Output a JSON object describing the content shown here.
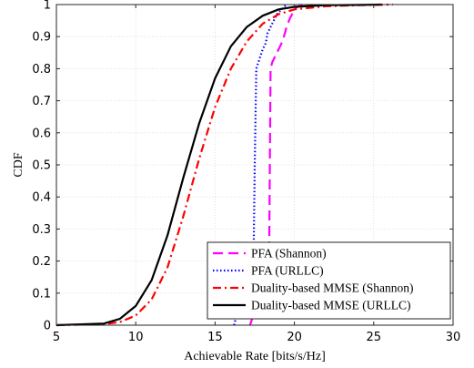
{
  "chart_data": {
    "type": "line",
    "xlabel": "Achievable Rate [bits/s/Hz]",
    "ylabel": "CDF",
    "xlim": [
      5,
      30
    ],
    "ylim": [
      0,
      1
    ],
    "xticks": [
      5,
      10,
      15,
      20,
      25,
      30
    ],
    "yticks": [
      0,
      0.1,
      0.2,
      0.3,
      0.4,
      0.5,
      0.6,
      0.7,
      0.8,
      0.9,
      1
    ],
    "xtick_labels": [
      "5",
      "10",
      "15",
      "20",
      "25",
      "30"
    ],
    "ytick_labels": [
      "0",
      "0.1",
      "0.2",
      "0.3",
      "0.4",
      "0.5",
      "0.6",
      "0.7",
      "0.8",
      "0.9",
      "1"
    ],
    "grid": true,
    "legend_position": "bottom-right",
    "series": [
      {
        "name": "PFA (Shannon)",
        "color": "#ff00ff",
        "style": "dashed",
        "x": [
          17.2,
          17.4,
          17.6,
          17.8,
          18.0,
          18.2,
          18.4,
          18.45,
          18.5,
          18.6,
          18.8,
          19.0,
          19.2,
          19.4,
          19.5,
          19.7,
          19.9,
          20.1,
          20.5
        ],
        "y": [
          0.0,
          0.03,
          0.07,
          0.1,
          0.12,
          0.14,
          0.16,
          0.5,
          0.8,
          0.82,
          0.84,
          0.86,
          0.88,
          0.91,
          0.93,
          0.955,
          0.975,
          0.99,
          1.0
        ]
      },
      {
        "name": "PFA (URLLC)",
        "color": "#0000ff",
        "style": "dotted",
        "x": [
          16.2,
          16.4,
          16.6,
          16.8,
          17.0,
          17.2,
          17.4,
          17.5,
          17.6,
          17.8,
          18.0,
          18.2,
          18.3,
          18.5,
          18.7,
          18.9,
          19.1,
          19.3,
          19.5
        ],
        "y": [
          0.0,
          0.04,
          0.07,
          0.09,
          0.1,
          0.11,
          0.12,
          0.5,
          0.8,
          0.83,
          0.86,
          0.88,
          0.91,
          0.93,
          0.95,
          0.97,
          0.98,
          0.99,
          1.0
        ]
      },
      {
        "name": "Duality-based MMSE (Shannon)",
        "color": "#ff0000",
        "style": "dashdot",
        "x": [
          5,
          8,
          9,
          10,
          11,
          12,
          13,
          14,
          15,
          16,
          17,
          18,
          19,
          20,
          22,
          24,
          26.2
        ],
        "y": [
          0.0,
          0.003,
          0.01,
          0.03,
          0.08,
          0.18,
          0.34,
          0.52,
          0.68,
          0.8,
          0.885,
          0.94,
          0.97,
          0.985,
          0.995,
          0.998,
          1.0
        ]
      },
      {
        "name": "Duality-based MMSE (URLLC)",
        "color": "#000000",
        "style": "solid",
        "x": [
          5,
          8,
          9,
          10,
          11,
          12,
          13,
          14,
          15,
          16,
          17,
          18,
          19,
          20,
          22,
          24,
          25.5
        ],
        "y": [
          0.0,
          0.005,
          0.02,
          0.06,
          0.14,
          0.28,
          0.46,
          0.63,
          0.77,
          0.87,
          0.93,
          0.965,
          0.985,
          0.993,
          0.998,
          0.999,
          1.0
        ]
      }
    ]
  }
}
